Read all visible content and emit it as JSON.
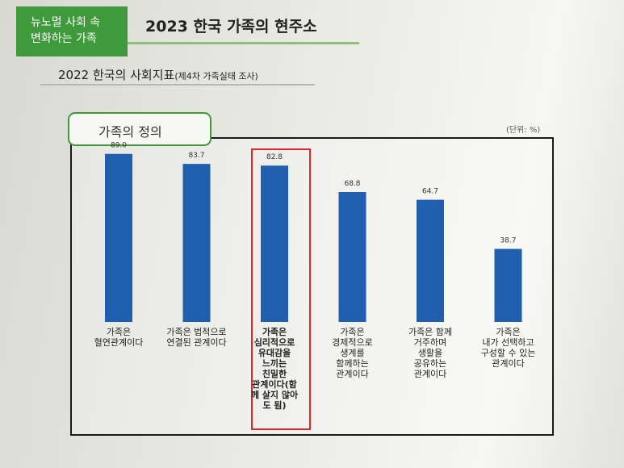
{
  "header": {
    "tag_line1": "뉴노멀 사회 속",
    "tag_line2": "변화하는 가족",
    "title": "2023 한국 가족의 현주소"
  },
  "subtitle": {
    "main": "2022 한국의 사회지표",
    "note": "(제4차 가족실태 조사)"
  },
  "chart_data": {
    "type": "bar",
    "title": "가족의 정의",
    "unit": "(단위: %)",
    "categories": [
      "가족은\n혈연관계이다",
      "가족은 법적으로\n연결된 관계이다",
      "가족은\n심리적으로\n유대감을\n느끼는\n친밀한\n관계이다(함\n께 살지 않아\n도 됨)",
      "가족은\n경제적으로\n생계를\n함께하는\n관계이다",
      "가족은 함께\n거주하며\n생활을\n공유하는\n관계이다",
      "가족은\n내가 선택하고\n구성할 수 있는\n관계이다"
    ],
    "values": [
      89.0,
      83.7,
      82.8,
      68.8,
      64.7,
      38.7
    ],
    "value_labels": [
      "89.0",
      "83.7",
      "82.8",
      "68.8",
      "64.7",
      "38.7"
    ],
    "highlighted_index": 2,
    "ylim": [
      0,
      100
    ],
    "grid": false,
    "colors": {
      "bar": "#1f5fae",
      "highlight": "#e0262b",
      "accent": "#3f9a3c"
    }
  }
}
